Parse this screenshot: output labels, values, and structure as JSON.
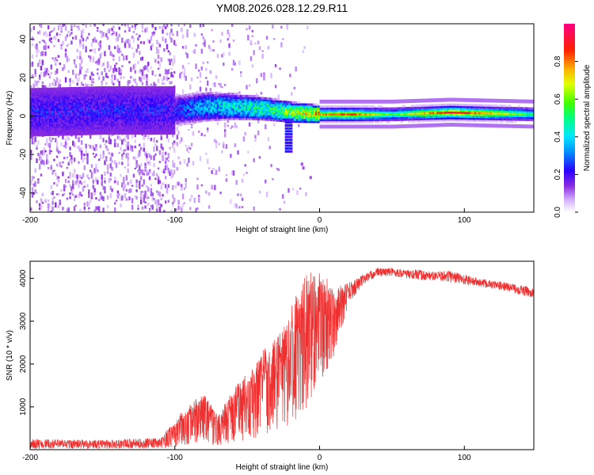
{
  "title": "YM08.2026.028.12.29.R11",
  "chart_data": [
    {
      "type": "heatmap",
      "name": "spectrogram",
      "xlabel": "Height of straight line (km)",
      "ylabel": "Frequency (Hz)",
      "xlim": [
        -200,
        148
      ],
      "ylim": [
        -50,
        48
      ],
      "xticks": [
        -200,
        -100,
        0,
        100
      ],
      "xtick_labels": [
        "-200",
        "-100",
        "0",
        "100"
      ],
      "yticks": [
        -40,
        -20,
        0,
        20,
        40
      ],
      "ytick_labels": [
        "-40",
        "-20",
        "0",
        "20",
        "40"
      ],
      "colorbar": {
        "label": "Normalized spectral amplitude",
        "range": [
          0.0,
          1.0
        ],
        "ticks": [
          0.0,
          0.2,
          0.4,
          0.6,
          0.8
        ],
        "tick_labels": [
          "0.0",
          "0.2",
          "0.4",
          "0.6",
          "0.8"
        ]
      },
      "description_points": {
        "ridge_frequency_hz": [
          [
            -200,
            2
          ],
          [
            -150,
            3
          ],
          [
            -100,
            3
          ],
          [
            -80,
            5
          ],
          [
            -60,
            5
          ],
          [
            -40,
            4
          ],
          [
            -20,
            2
          ],
          [
            0,
            1
          ],
          [
            20,
            1
          ],
          [
            50,
            1
          ],
          [
            90,
            2
          ],
          [
            148,
            1
          ]
        ],
        "ridge_amplitude": [
          [
            -200,
            0.12
          ],
          [
            -150,
            0.14
          ],
          [
            -110,
            0.2
          ],
          [
            -90,
            0.35
          ],
          [
            -70,
            0.45
          ],
          [
            -50,
            0.5
          ],
          [
            -30,
            0.6
          ],
          [
            -10,
            0.75
          ],
          [
            0,
            0.85
          ],
          [
            20,
            0.9
          ],
          [
            50,
            0.6
          ],
          [
            90,
            0.95
          ],
          [
            105,
            0.9
          ],
          [
            148,
            0.55
          ]
        ]
      }
    },
    {
      "type": "line",
      "name": "snr",
      "xlabel": "Height of straight line (km)",
      "ylabel": "SNR (10 * v/v)",
      "xlim": [
        -200,
        148
      ],
      "ylim": [
        0,
        4400
      ],
      "xticks": [
        -200,
        -100,
        0,
        100
      ],
      "xtick_labels": [
        "-200",
        "-100",
        "0",
        "100"
      ],
      "yticks": [
        1000,
        2000,
        3000,
        4000
      ],
      "ytick_labels": [
        "1000",
        "2000",
        "3000",
        "4000"
      ],
      "color": "#ee3030",
      "envelope": {
        "x": [
          -200,
          -150,
          -110,
          -100,
          -90,
          -80,
          -70,
          -60,
          -50,
          -40,
          -30,
          -20,
          -10,
          0,
          10,
          20,
          30,
          40,
          50,
          60,
          70,
          80,
          90,
          100,
          110,
          120,
          130,
          140,
          148
        ],
        "low": [
          20,
          20,
          30,
          60,
          80,
          120,
          100,
          150,
          200,
          300,
          400,
          500,
          900,
          1500,
          2200,
          3400,
          3850,
          4050,
          4050,
          4000,
          3950,
          3950,
          3900,
          3850,
          3800,
          3750,
          3700,
          3600,
          3550
        ],
        "high": [
          250,
          230,
          270,
          700,
          1100,
          1300,
          800,
          1400,
          1800,
          2300,
          2600,
          3300,
          4100,
          4200,
          3800,
          3900,
          4100,
          4250,
          4250,
          4200,
          4200,
          4150,
          4200,
          4100,
          4000,
          3950,
          3900,
          3850,
          3750
        ]
      }
    }
  ]
}
